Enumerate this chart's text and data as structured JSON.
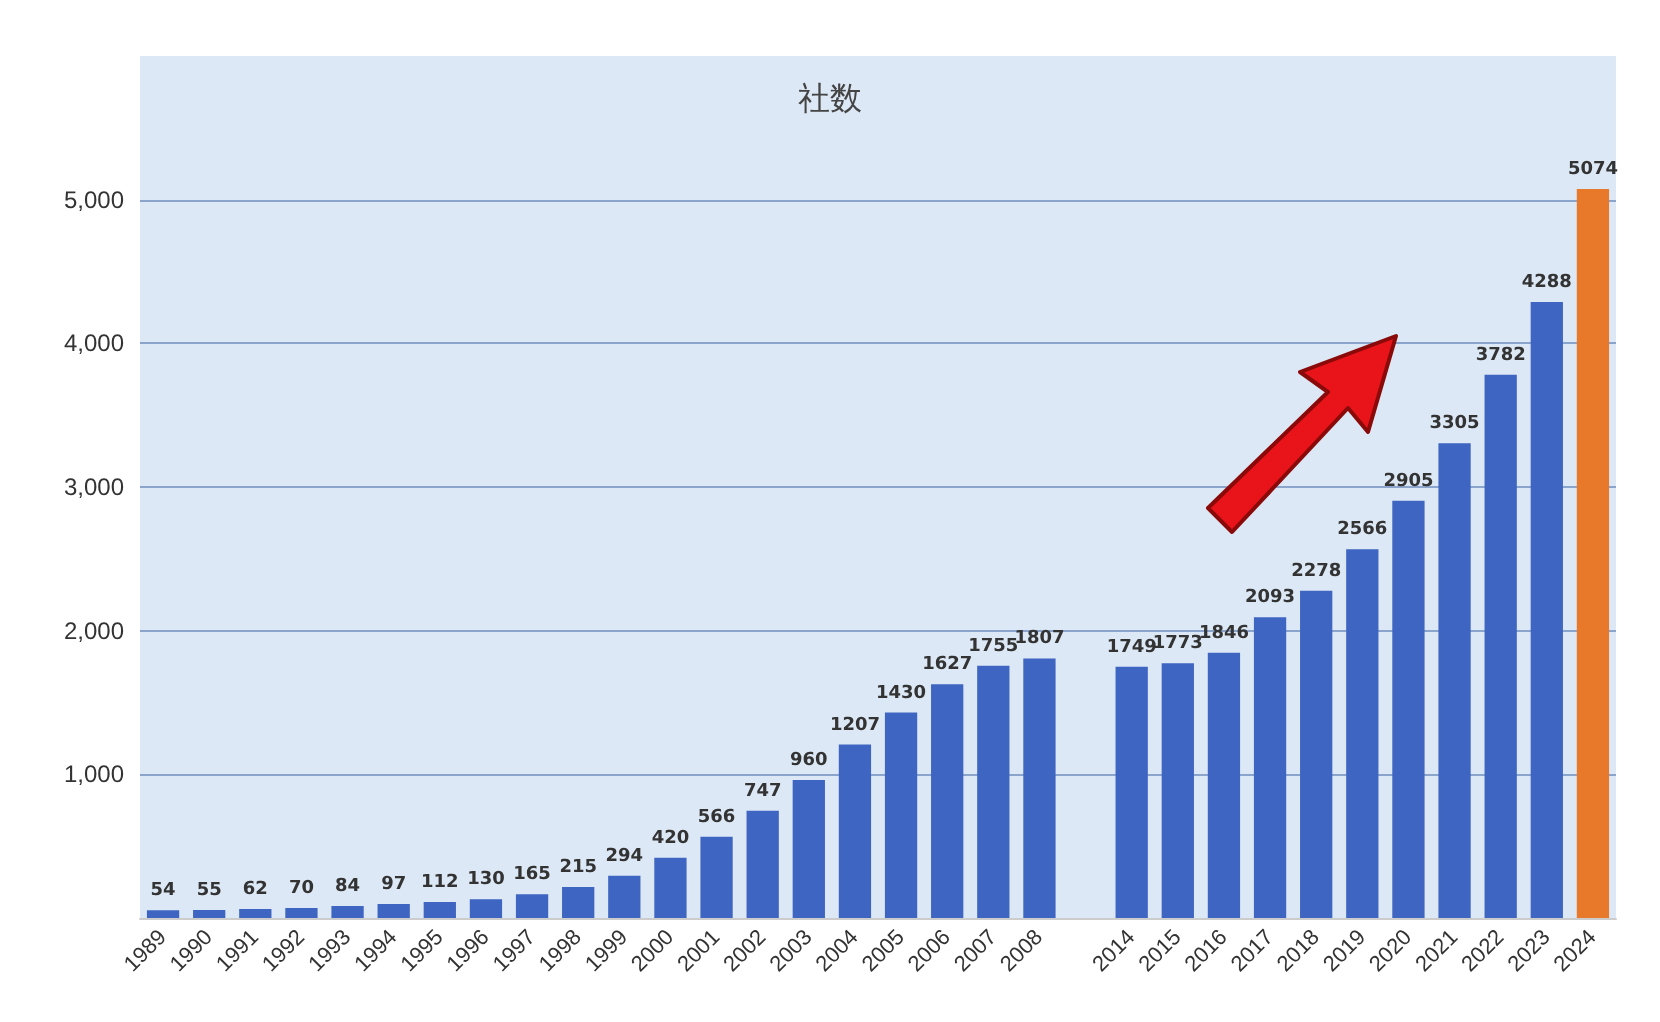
{
  "chart_data": {
    "type": "bar",
    "title": "社数",
    "categories": [
      "1989",
      "1990",
      "1991",
      "1992",
      "1993",
      "1994",
      "1995",
      "1996",
      "1997",
      "1998",
      "1999",
      "2000",
      "2001",
      "2002",
      "2003",
      "2004",
      "2005",
      "2006",
      "2007",
      "2008",
      null,
      "2014",
      "2015",
      "2016",
      "2017",
      "2018",
      "2019",
      "2020",
      "2021",
      "2022",
      "2023",
      "2024"
    ],
    "values": [
      54,
      55,
      62,
      70,
      84,
      97,
      112,
      130,
      165,
      215,
      294,
      420,
      566,
      747,
      960,
      1207,
      1430,
      1627,
      1755,
      1807,
      null,
      1749,
      1773,
      1846,
      2093,
      2278,
      2566,
      2905,
      3305,
      3782,
      4288,
      5074
    ],
    "colors": [
      "#3f65c2",
      "#3f65c2",
      "#3f65c2",
      "#3f65c2",
      "#3f65c2",
      "#3f65c2",
      "#3f65c2",
      "#3f65c2",
      "#3f65c2",
      "#3f65c2",
      "#3f65c2",
      "#3f65c2",
      "#3f65c2",
      "#3f65c2",
      "#3f65c2",
      "#3f65c2",
      "#3f65c2",
      "#3f65c2",
      "#3f65c2",
      "#3f65c2",
      "#3f65c2",
      "#3f65c2",
      "#3f65c2",
      "#3f65c2",
      "#3f65c2",
      "#3f65c2",
      "#3f65c2",
      "#3f65c2",
      "#3f65c2",
      "#3f65c2",
      "#3f65c2",
      "#e8782a"
    ],
    "ylim": [
      0,
      6000
    ],
    "yticks": [
      {
        "value": 1000,
        "label": "1,000"
      },
      {
        "value": 2000,
        "label": "2,000"
      },
      {
        "value": 3000,
        "label": "3,000"
      },
      {
        "value": 4000,
        "label": "4,000"
      },
      {
        "value": 5000,
        "label": "5,000"
      }
    ],
    "grid": "y",
    "data_labels": true
  }
}
